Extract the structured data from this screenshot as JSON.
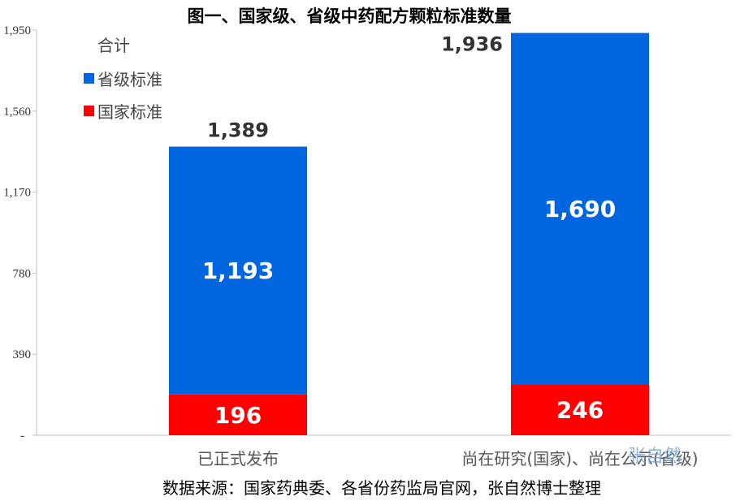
{
  "chart_data": {
    "type": "bar",
    "title": "图一、国家级、省级中药配方颗粒标准数量",
    "categories": [
      "已正式发布",
      "尚在研究(国家)、尚在公示(省级)"
    ],
    "series": [
      {
        "name": "国家标准",
        "values": [
          196,
          246
        ],
        "color": "#ff0000"
      },
      {
        "name": "省级标准",
        "values": [
          1193,
          1690
        ],
        "color": "#0066e0"
      }
    ],
    "totals_label": "合计",
    "totals": [
      1389,
      1936
    ],
    "value_labels": {
      "national": [
        "196",
        "246"
      ],
      "provincial": [
        "1,193",
        "1,690"
      ],
      "totals": [
        "1,389",
        "1,936"
      ]
    },
    "ylim": [
      0,
      1950
    ],
    "yticks": [
      "-",
      "390",
      "780",
      "1,170",
      "1,560",
      "1,950"
    ],
    "legend": [
      "合计",
      "省级标准",
      "国家标准"
    ],
    "legend_position": "top-left",
    "grid": false
  },
  "source_note": "数据来源：国家药典委、各省份药监局官网，张自然博士整理",
  "watermark": "张自然"
}
